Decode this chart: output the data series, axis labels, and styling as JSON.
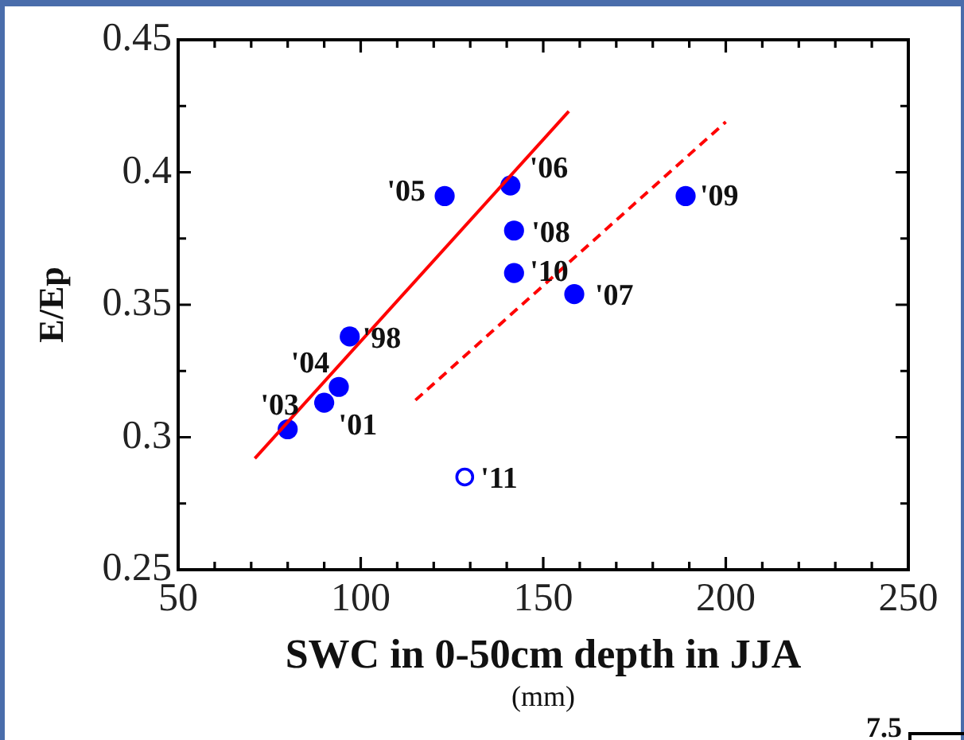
{
  "chart_data": {
    "type": "scatter",
    "xlabel": "SWC in 0-50cm depth in JJA\n(mm)",
    "ylabel": "E/Ep",
    "annotations": [
      {
        "text": "'98",
        "x": 97,
        "y": 0.338
      },
      {
        "text": "'01",
        "x": 90,
        "y": 0.313
      },
      {
        "text": "'03",
        "x": 80,
        "y": 0.303
      },
      {
        "text": "'04",
        "x": 94,
        "y": 0.319
      },
      {
        "text": "'05",
        "x": 123,
        "y": 0.391
      },
      {
        "text": "'06",
        "x": 141,
        "y": 0.395
      },
      {
        "text": "'07",
        "x": 158.5,
        "y": 0.354
      },
      {
        "text": "'08",
        "x": 142,
        "y": 0.378
      },
      {
        "text": "'09",
        "x": 189,
        "y": 0.391
      },
      {
        "text": "'10",
        "x": 142,
        "y": 0.362
      },
      {
        "text": "'11",
        "x": 128.5,
        "y": 0.285
      },
      "7.5"
    ],
    "xlim": [
      50,
      250
    ],
    "xticks": [
      50,
      {
        "value": 60,
        "label": null
      },
      {
        "value": 70,
        "label": null
      },
      {
        "value": 80,
        "label": null
      },
      {
        "value": 90,
        "label": null
      },
      100,
      {
        "value": 110,
        "label": null
      },
      {
        "value": 120,
        "label": null
      },
      {
        "value": 130,
        "label": null
      },
      {
        "value": 140,
        "label": null
      },
      150,
      {
        "value": 160,
        "label": null
      },
      {
        "value": 170,
        "label": null
      },
      {
        "value": 180,
        "label": null
      },
      {
        "value": 190,
        "label": null
      },
      200,
      {
        "value": 210,
        "label": null
      },
      {
        "value": 220,
        "label": null
      },
      {
        "value": 230,
        "label": null
      },
      {
        "value": 240,
        "label": null
      },
      250
    ],
    "ylim": [
      0.25,
      0.45
    ],
    "yticks": [
      0.25,
      {
        "value": 0.275,
        "label": null
      },
      0.3,
      {
        "value": 0.325,
        "label": null
      },
      0.35,
      {
        "value": 0.375,
        "label": null
      },
      0.4,
      {
        "value": 0.425,
        "label": null
      },
      0.45
    ],
    "marker": "circle",
    "legend": false,
    "series": [
      {
        "color": "#0000ff",
        "x": [
          97,
          90,
          80,
          94,
          123,
          141,
          158.5,
          142,
          189,
          142
        ],
        "values": [
          0.338,
          0.313,
          0.303,
          0.319,
          0.391,
          0.395,
          0.354,
          0.378,
          0.391,
          0.362
        ]
      },
      {
        "color": "#0000ff",
        "x": [
          128.5
        ],
        "values": [
          0.285
        ]
      },
      {
        "type": "line",
        "color": "#ff0000",
        "x": [
          71,
          157
        ],
        "values": [
          0.292,
          0.423
        ],
        "marker": "none",
        "line_style": "solid"
      },
      {
        "type": "line",
        "color": "#ff0000",
        "x": [
          115,
          200
        ],
        "values": [
          0.314,
          0.419
        ],
        "marker": "none",
        "line_style": "dashed"
      }
    ]
  }
}
